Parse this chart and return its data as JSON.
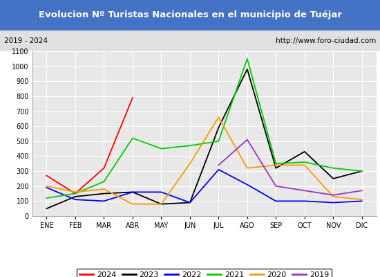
{
  "title": "Evolucion Nº Turistas Nacionales en el municipio de Tuéjar",
  "subtitle_left": "2019 - 2024",
  "subtitle_right": "http://www.foro-ciudad.com",
  "title_bg_color": "#4472c4",
  "title_text_color": "#ffffff",
  "subtitle_bg_color": "#e0e0e0",
  "plot_bg_color": "#e8e8e8",
  "months": [
    "ENE",
    "FEB",
    "MAR",
    "ABR",
    "MAY",
    "JUN",
    "JUL",
    "AGO",
    "SEP",
    "OCT",
    "NOV",
    "DIC"
  ],
  "ylim": [
    0,
    1100
  ],
  "yticks": [
    0,
    100,
    200,
    300,
    400,
    500,
    600,
    700,
    800,
    900,
    1000,
    1100
  ],
  "series": {
    "2024": {
      "color": "#ff0000",
      "values": [
        270,
        150,
        320,
        790,
        null,
        null,
        null,
        null,
        null,
        null,
        null,
        null
      ]
    },
    "2023": {
      "color": "#000000",
      "values": [
        50,
        130,
        150,
        160,
        80,
        90,
        590,
        980,
        320,
        430,
        250,
        300
      ]
    },
    "2022": {
      "color": "#0000ff",
      "values": [
        190,
        110,
        100,
        160,
        160,
        90,
        310,
        210,
        100,
        100,
        90,
        100
      ]
    },
    "2021": {
      "color": "#00cc00",
      "values": [
        120,
        150,
        230,
        520,
        450,
        470,
        500,
        1050,
        350,
        360,
        320,
        300
      ]
    },
    "2020": {
      "color": "#ff9900",
      "values": [
        200,
        160,
        180,
        80,
        80,
        350,
        660,
        320,
        340,
        340,
        130,
        110
      ]
    },
    "2019": {
      "color": "#9933cc",
      "values": [
        null,
        null,
        null,
        null,
        null,
        null,
        340,
        510,
        200,
        170,
        140,
        170
      ]
    }
  },
  "legend_order": [
    "2024",
    "2023",
    "2022",
    "2021",
    "2020",
    "2019"
  ]
}
